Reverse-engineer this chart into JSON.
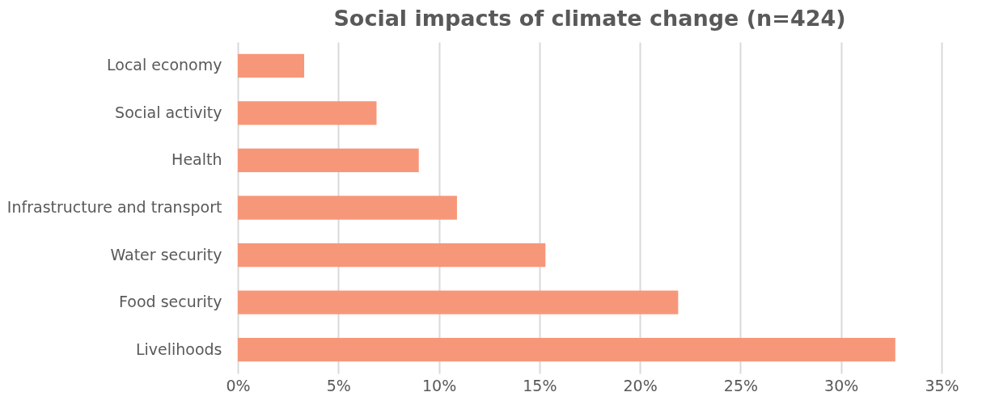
{
  "chart_data": {
    "type": "bar",
    "orientation": "horizontal",
    "title": "Social impacts of climate change (n=424)",
    "categories": [
      "Local economy",
      "Social activity",
      "Health",
      "Infrastructure and transport",
      "Water security",
      "Food security",
      "Livelihoods"
    ],
    "values": [
      3.3,
      6.9,
      9.0,
      10.9,
      15.3,
      21.9,
      32.7
    ],
    "color": "#f7977a",
    "xlim": [
      0,
      35
    ],
    "xticks": [
      {
        "value": 0,
        "label": "0%"
      },
      {
        "value": 5,
        "label": "5%"
      },
      {
        "value": 10,
        "label": "10%"
      },
      {
        "value": 15,
        "label": "15%"
      },
      {
        "value": 20,
        "label": "20%"
      },
      {
        "value": 25,
        "label": "25%"
      },
      {
        "value": 30,
        "label": "30%"
      },
      {
        "value": 35,
        "label": "35%"
      }
    ],
    "grid": "x"
  }
}
